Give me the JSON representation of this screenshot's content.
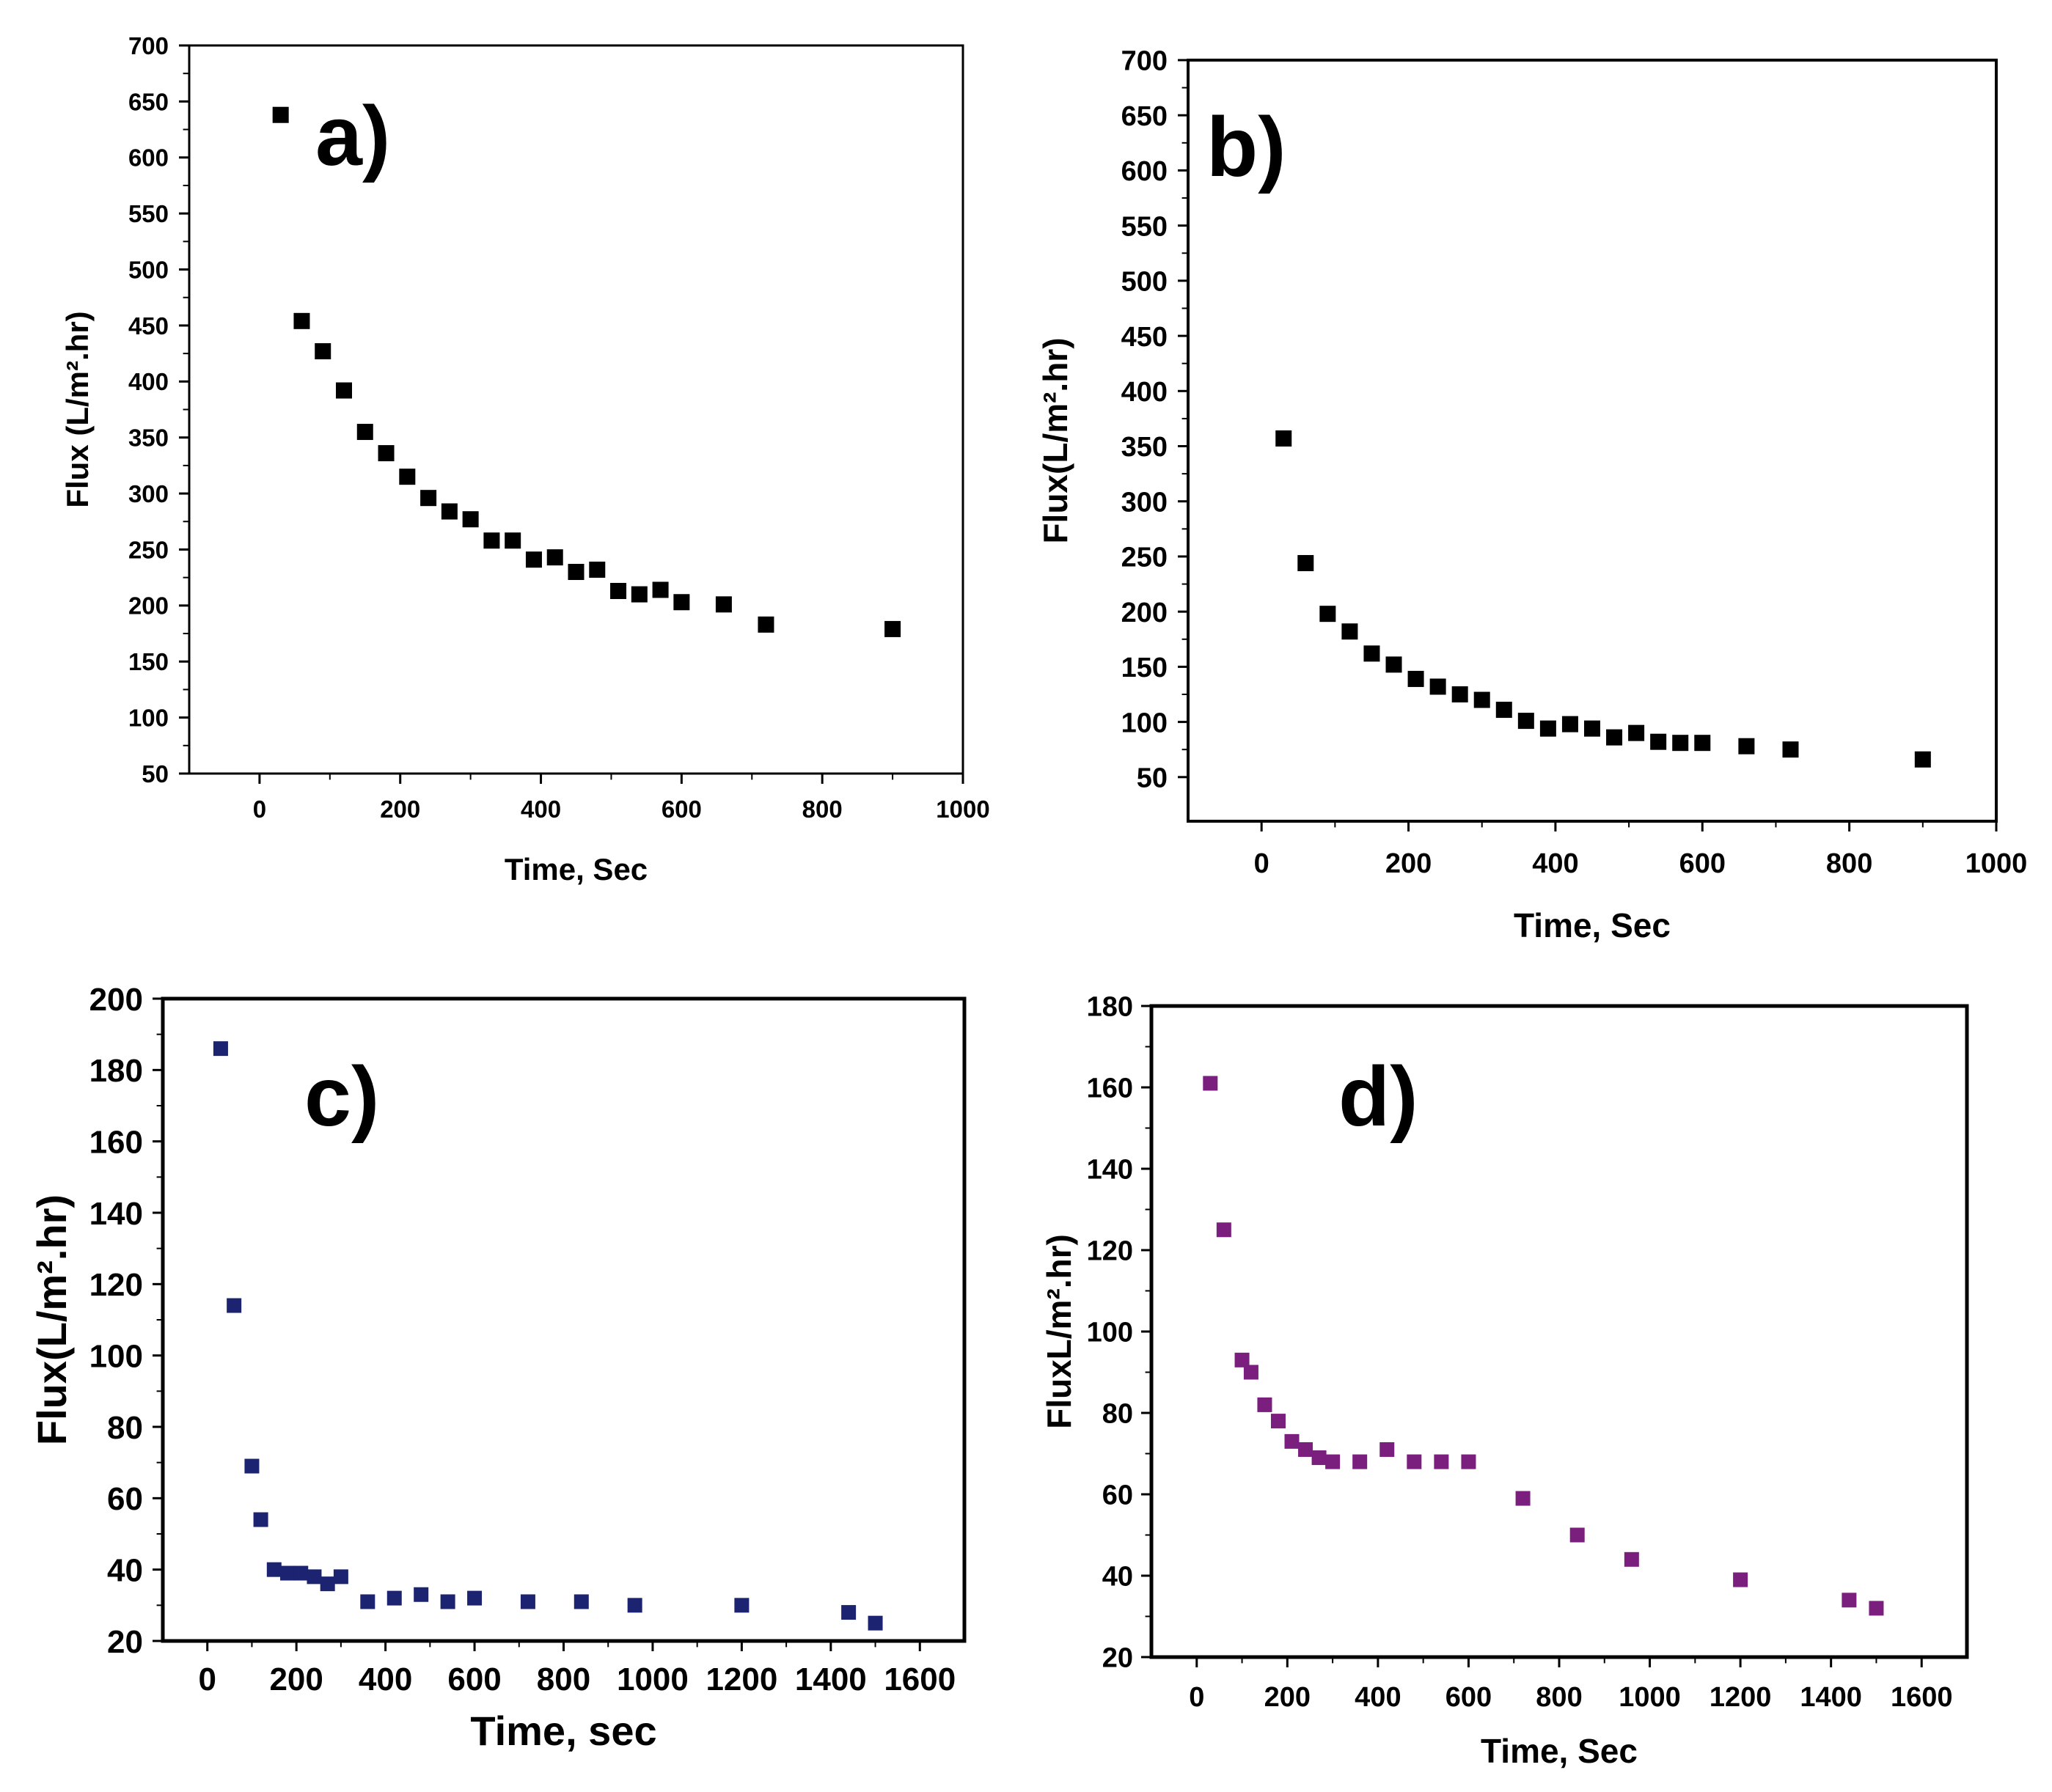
{
  "chart_data": [
    {
      "type": "scatter",
      "panel_label": "a)",
      "title": "",
      "xlabel": "Time, Sec",
      "ylabel": "Flux (L/m².hr)",
      "xlim": [
        -100,
        1000
      ],
      "ylim": [
        50,
        700
      ],
      "xticks": [
        0,
        200,
        400,
        600,
        800,
        1000
      ],
      "yticks": [
        50,
        100,
        150,
        200,
        250,
        300,
        350,
        400,
        450,
        500,
        550,
        600,
        650,
        700
      ],
      "marker_color": "#000000",
      "series": [
        {
          "name": "a",
          "x": [
            30,
            60,
            90,
            120,
            150,
            180,
            210,
            240,
            270,
            300,
            330,
            360,
            390,
            420,
            450,
            480,
            510,
            540,
            570,
            600,
            660,
            720,
            900
          ],
          "y": [
            638,
            454,
            427,
            392,
            355,
            336,
            315,
            296,
            284,
            277,
            258,
            258,
            241,
            243,
            230,
            232,
            213,
            210,
            214,
            203,
            201,
            183,
            179
          ]
        }
      ]
    },
    {
      "type": "scatter",
      "panel_label": "b)",
      "title": "",
      "xlabel": "Time, Sec",
      "ylabel": "Flux(L/m².hr)",
      "xlim": [
        -100,
        1000
      ],
      "ylim": [
        10,
        700
      ],
      "xticks": [
        0,
        200,
        400,
        600,
        800,
        1000
      ],
      "yticks": [
        50,
        100,
        150,
        200,
        250,
        300,
        350,
        400,
        450,
        500,
        550,
        600,
        650,
        700
      ],
      "marker_color": "#000000",
      "series": [
        {
          "name": "b",
          "x": [
            30,
            60,
            90,
            120,
            150,
            180,
            210,
            240,
            270,
            300,
            330,
            360,
            390,
            420,
            450,
            480,
            510,
            540,
            570,
            600,
            660,
            720,
            900
          ],
          "y": [
            357,
            244,
            198,
            182,
            162,
            152,
            139,
            132,
            125,
            120,
            111,
            101,
            94,
            98,
            94,
            86,
            90,
            82,
            81,
            81,
            78,
            75,
            66
          ]
        }
      ]
    },
    {
      "type": "scatter",
      "panel_label": "c)",
      "title": "",
      "xlabel": "Time, sec",
      "ylabel": "Flux(L/m².hr)",
      "xlim": [
        -100,
        1700
      ],
      "ylim": [
        20,
        200
      ],
      "xticks": [
        0,
        200,
        400,
        600,
        800,
        1000,
        1200,
        1400,
        1600
      ],
      "yticks": [
        20,
        40,
        60,
        80,
        100,
        120,
        140,
        160,
        180,
        200
      ],
      "marker_color": "#1c2370",
      "series": [
        {
          "name": "c",
          "x": [
            30,
            60,
            100,
            120,
            150,
            180,
            210,
            240,
            270,
            300,
            360,
            420,
            480,
            540,
            600,
            720,
            840,
            960,
            1200,
            1440,
            1500
          ],
          "y": [
            186,
            114,
            69,
            54,
            40,
            39,
            39,
            38,
            36,
            38,
            31,
            32,
            33,
            31,
            32,
            31,
            31,
            30,
            30,
            28,
            25
          ]
        }
      ]
    },
    {
      "type": "scatter",
      "panel_label": "d)",
      "title": "",
      "xlabel": "Time, Sec",
      "ylabel": "FluxL/m².hr)",
      "xlim": [
        -100,
        1700
      ],
      "ylim": [
        20,
        180
      ],
      "xticks": [
        0,
        200,
        400,
        600,
        800,
        1000,
        1200,
        1400,
        1600
      ],
      "yticks": [
        20,
        40,
        60,
        80,
        100,
        120,
        140,
        160,
        180
      ],
      "marker_color": "#7a1f7e",
      "series": [
        {
          "name": "d",
          "x": [
            30,
            60,
            100,
            120,
            150,
            180,
            210,
            240,
            270,
            300,
            360,
            420,
            480,
            540,
            600,
            720,
            840,
            960,
            1200,
            1440,
            1500
          ],
          "y": [
            161,
            125,
            93,
            90,
            82,
            78,
            73,
            71,
            69,
            68,
            68,
            71,
            68,
            68,
            68,
            59,
            50,
            44,
            39,
            34,
            32
          ]
        }
      ]
    }
  ]
}
